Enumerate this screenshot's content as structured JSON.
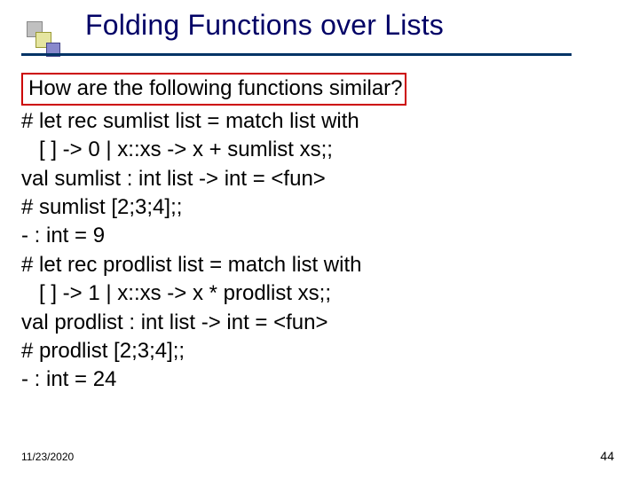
{
  "title": "Folding Functions over Lists",
  "title_color": "#000066",
  "accent_line_color": "#003366",
  "highlight_border_color": "#cc0000",
  "text_color": "#000000",
  "question": "How are the following functions similar?",
  "lines": [
    "# let rec sumlist list = match list with",
    "   [ ] -> 0 | x::xs -> x + sumlist xs;;",
    "val sumlist : int list -> int = <fun>",
    "# sumlist [2;3;4];;",
    "- : int = 9",
    "# let rec prodlist list = match list with",
    "   [ ] -> 1 | x::xs -> x * prodlist xs;;",
    "val prodlist : int list -> int = <fun>",
    "# prodlist [2;3;4];;",
    "- : int = 24"
  ],
  "footer": {
    "date": "11/23/2020",
    "page": "44"
  },
  "accent_squares": [
    {
      "color": "#c0c0c0",
      "border": "#888888"
    },
    {
      "color": "#e5e5a0",
      "border": "#999933"
    },
    {
      "color": "#8888cc",
      "border": "#444488"
    }
  ]
}
